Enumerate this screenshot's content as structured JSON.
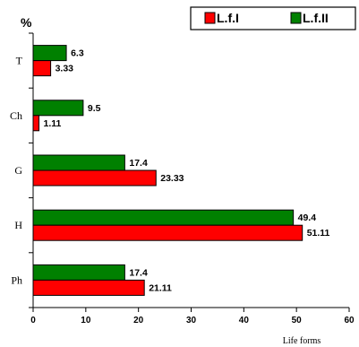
{
  "chart_data": {
    "type": "bar",
    "orientation": "horizontal",
    "categories": [
      "T",
      "Ch",
      "G",
      "H",
      "Ph"
    ],
    "series": [
      {
        "name": "L.f.I",
        "values": [
          3.33,
          1.11,
          23.33,
          51.11,
          21.11
        ],
        "color": "#ff0000"
      },
      {
        "name": "L.f.II",
        "values": [
          6.3,
          9.5,
          17.4,
          49.4,
          17.4
        ],
        "color": "#008000"
      }
    ],
    "xlim": [
      0,
      60
    ],
    "xticks": [
      0,
      10,
      20,
      30,
      40,
      50,
      60
    ],
    "xlabel": "Life forms",
    "ylabel": "%",
    "legend_position": "top-right",
    "grid": false
  }
}
